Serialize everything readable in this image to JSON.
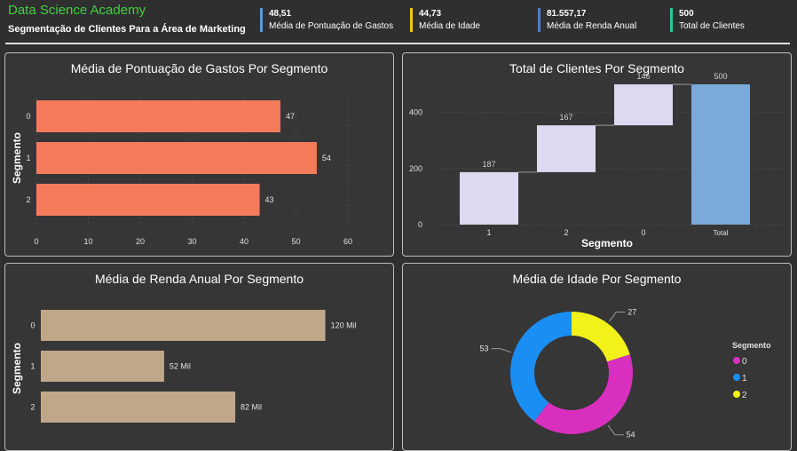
{
  "header": {
    "brand": "Data Science Academy",
    "subtitle": "Segmentação de Clientes Para a Área de Marketing",
    "kpis": [
      {
        "value": "48,51",
        "label": "Média de Pontuação de Gastos",
        "color": "#5b9bd5"
      },
      {
        "value": "44,73",
        "label": "Média de Idade",
        "color": "#f2c811"
      },
      {
        "value": "81.557,17",
        "label": "Média de Renda Anual",
        "color": "#4a7fc1"
      },
      {
        "value": "500",
        "label": "Total de Clientes",
        "color": "#2ec4a6"
      }
    ]
  },
  "chart_data": [
    {
      "type": "bar",
      "orientation": "horizontal",
      "title": "Média de Pontuação de Gastos Por Segmento",
      "ylabel": "Segmento",
      "xlabel": "",
      "categories": [
        "0",
        "1",
        "2"
      ],
      "values": [
        47,
        54,
        43
      ],
      "data_labels": [
        "47",
        "54",
        "43"
      ],
      "xticks": [
        "0",
        "10",
        "20",
        "30",
        "40",
        "50",
        "60"
      ],
      "xlim": [
        0,
        60
      ],
      "color": "#f47b5a"
    },
    {
      "type": "bar",
      "subtype": "waterfall",
      "title": "Total de Clientes Por Segmento",
      "xlabel": "Segmento",
      "ylabel": "",
      "categories": [
        "1",
        "2",
        "0",
        "Total"
      ],
      "values": [
        187,
        167,
        146,
        500
      ],
      "data_labels": [
        "187",
        "167",
        "146",
        "500"
      ],
      "yticks": [
        "0",
        "200",
        "400"
      ],
      "ylim": [
        0,
        500
      ],
      "colors": {
        "step": "#dcd9f0",
        "total": "#7aaad8"
      }
    },
    {
      "type": "bar",
      "orientation": "horizontal",
      "title": "Média de Renda Anual Por Segmento",
      "ylabel": "Segmento",
      "xlabel": "",
      "categories": [
        "0",
        "1",
        "2"
      ],
      "values": [
        120,
        52,
        82
      ],
      "data_labels": [
        "120 Mil",
        "52 Mil",
        "82 Mil"
      ],
      "xlim": [
        0,
        140
      ],
      "color": "#c1a78a"
    },
    {
      "type": "pie",
      "subtype": "donut",
      "title": "Média de Idade Por Segmento",
      "legend_title": "Segmento",
      "legend_position": "right",
      "slices": [
        {
          "label": "0",
          "value": 54,
          "color": "#d92fbf"
        },
        {
          "label": "1",
          "value": 53,
          "color": "#1a8ef2"
        },
        {
          "label": "2",
          "value": 27,
          "color": "#f2f21a"
        }
      ]
    }
  ]
}
